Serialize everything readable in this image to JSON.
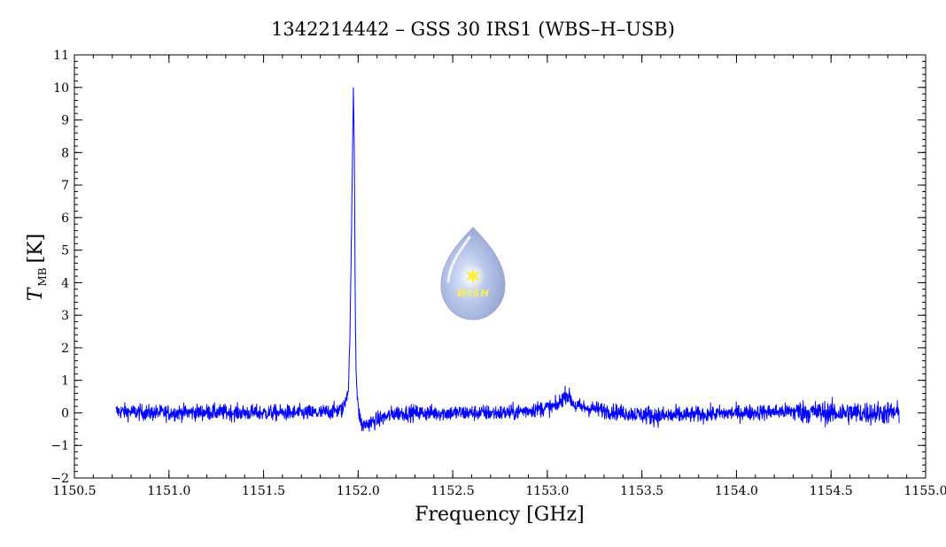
{
  "chart_data": {
    "type": "line",
    "title": "1342214442 – GSS 30 IRS1 (WBS–H–USB)",
    "xlabel": "Frequency [GHz]",
    "ylabel_main": "T",
    "ylabel_sub": "MB",
    "ylabel_unit": "[K]",
    "xlim": [
      1150.5,
      1155.0
    ],
    "ylim": [
      -2,
      11
    ],
    "xticks": [
      1150.5,
      1151.0,
      1151.5,
      1152.0,
      1152.5,
      1153.0,
      1153.5,
      1154.0,
      1154.5,
      1155.0
    ],
    "xtick_labels": [
      "1150.5",
      "1151.0",
      "1151.5",
      "1152.0",
      "1152.5",
      "1153.0",
      "1153.5",
      "1154.0",
      "1154.5",
      "1155.0"
    ],
    "yticks": [
      -2,
      -1,
      0,
      1,
      2,
      3,
      4,
      5,
      6,
      7,
      8,
      9,
      10,
      11
    ],
    "ytick_labels": [
      "−2",
      "−1",
      "0",
      "1",
      "2",
      "3",
      "4",
      "5",
      "6",
      "7",
      "8",
      "9",
      "10",
      "11"
    ],
    "grid": false,
    "series": [
      {
        "color": "#0000ff",
        "x_range": [
          1150.72,
          1154.86
        ],
        "baseline_noise_rms": 0.12,
        "x": [
          1150.72,
          1150.9,
          1151.2,
          1151.5,
          1151.8,
          1151.92,
          1151.95,
          1151.96,
          1151.97,
          1151.975,
          1151.98,
          1151.985,
          1151.99,
          1152.0,
          1152.02,
          1152.2,
          1152.5,
          1152.8,
          1153.05,
          1153.1,
          1153.15,
          1153.4,
          1153.6,
          1154.0,
          1154.3,
          1154.5,
          1154.86
        ],
        "y": [
          0.05,
          0.0,
          0.02,
          0.0,
          0.0,
          0.1,
          0.8,
          3.5,
          7.8,
          10.1,
          8.0,
          3.1,
          1.1,
          0.1,
          -0.4,
          0.0,
          0.0,
          0.0,
          0.2,
          0.6,
          0.2,
          0.0,
          -0.1,
          0.0,
          0.05,
          0.0,
          0.0
        ]
      }
    ],
    "logo_text": "WISH",
    "colors": {
      "line": "#0000ff",
      "axes": "#000000",
      "logo_body": "#a9b6dd",
      "logo_star": "#ffee44"
    }
  }
}
